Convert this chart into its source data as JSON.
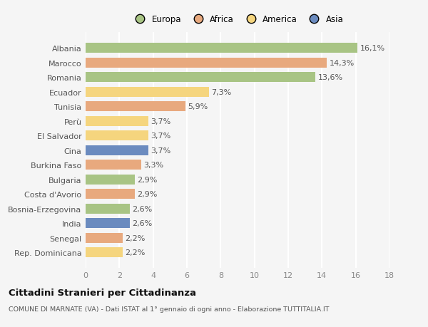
{
  "countries": [
    "Albania",
    "Marocco",
    "Romania",
    "Ecuador",
    "Tunisia",
    "Perù",
    "El Salvador",
    "Cina",
    "Burkina Faso",
    "Bulgaria",
    "Costa d'Avorio",
    "Bosnia-Erzegovina",
    "India",
    "Senegal",
    "Rep. Dominicana"
  ],
  "values": [
    16.1,
    14.3,
    13.6,
    7.3,
    5.9,
    3.7,
    3.7,
    3.7,
    3.3,
    2.9,
    2.9,
    2.6,
    2.6,
    2.2,
    2.2
  ],
  "labels": [
    "16,1%",
    "14,3%",
    "13,6%",
    "7,3%",
    "5,9%",
    "3,7%",
    "3,7%",
    "3,7%",
    "3,3%",
    "2,9%",
    "2,9%",
    "2,6%",
    "2,6%",
    "2,2%",
    "2,2%"
  ],
  "colors": [
    "#a8c484",
    "#e8a97e",
    "#a8c484",
    "#f5d57e",
    "#e8a97e",
    "#f5d57e",
    "#f5d57e",
    "#6b8bbf",
    "#e8a97e",
    "#a8c484",
    "#e8a97e",
    "#a8c484",
    "#6b8bbf",
    "#e8a97e",
    "#f5d57e"
  ],
  "legend_labels": [
    "Europa",
    "Africa",
    "America",
    "Asia"
  ],
  "legend_colors": [
    "#a8c484",
    "#e8a97e",
    "#f5d57e",
    "#6b8bbf"
  ],
  "xlim": [
    0,
    18
  ],
  "xticks": [
    0,
    2,
    4,
    6,
    8,
    10,
    12,
    14,
    16,
    18
  ],
  "title": "Cittadini Stranieri per Cittadinanza",
  "subtitle": "COMUNE DI MARNATE (VA) - Dati ISTAT al 1° gennaio di ogni anno - Elaborazione TUTTITALIA.IT",
  "background_color": "#f5f5f5",
  "grid_color": "#ffffff",
  "bar_height": 0.68,
  "label_fontsize": 8,
  "tick_fontsize": 8
}
